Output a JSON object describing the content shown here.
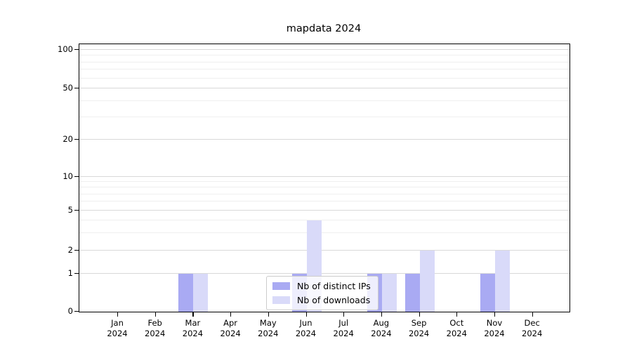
{
  "figure": {
    "title": "mapdata 2024"
  },
  "chart_data": {
    "type": "bar",
    "title": "mapdata 2024",
    "x": [
      "Jan 2024",
      "Feb 2024",
      "Mar 2024",
      "Apr 2024",
      "May 2024",
      "Jun 2024",
      "Jul 2024",
      "Aug 2024",
      "Sep 2024",
      "Oct 2024",
      "Nov 2024",
      "Dec 2024"
    ],
    "x_tick_lines": [
      {
        "month": "Jan",
        "year": "2024"
      },
      {
        "month": "Feb",
        "year": "2024"
      },
      {
        "month": "Mar",
        "year": "2024"
      },
      {
        "month": "Apr",
        "year": "2024"
      },
      {
        "month": "May",
        "year": "2024"
      },
      {
        "month": "Jun",
        "year": "2024"
      },
      {
        "month": "Jul",
        "year": "2024"
      },
      {
        "month": "Aug",
        "year": "2024"
      },
      {
        "month": "Sep",
        "year": "2024"
      },
      {
        "month": "Oct",
        "year": "2024"
      },
      {
        "month": "Nov",
        "year": "2024"
      },
      {
        "month": "Dec",
        "year": "2024"
      }
    ],
    "series": [
      {
        "name": "Nb of distinct IPs",
        "color": "#a9aaf3",
        "values": [
          0,
          0,
          1,
          0,
          0,
          1,
          0,
          1,
          1,
          0,
          1,
          0
        ]
      },
      {
        "name": "Nb of downloads",
        "color": "#d9daf9",
        "values": [
          0,
          0,
          1,
          0,
          0,
          4,
          0,
          1,
          2,
          0,
          2,
          0
        ]
      }
    ],
    "y_scale": "symlog",
    "y_ticks": [
      0,
      1,
      2,
      5,
      10,
      20,
      50,
      100
    ],
    "y_minor_ticks": [
      3,
      4,
      6,
      7,
      8,
      9,
      30,
      40,
      60,
      70,
      80,
      90
    ],
    "ylim": [
      0,
      100
    ],
    "grid": {
      "orientation": "horizontal",
      "major_color": "#d9d9d9",
      "minor_color": "#efefef"
    },
    "legend": {
      "position": "lower-center-inside",
      "entries": [
        "Nb of distinct IPs",
        "Nb of downloads"
      ]
    }
  }
}
